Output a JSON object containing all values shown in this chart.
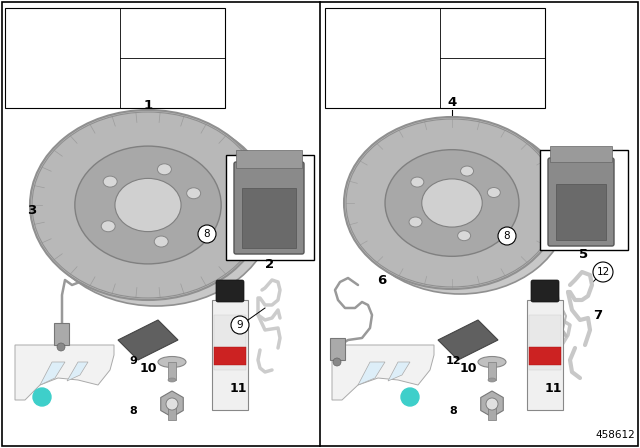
{
  "figure_number": "458612",
  "bg": "#ffffff",
  "border": "#000000",
  "teal": "#3ecfca",
  "light_gray": "#d8d8d8",
  "mid_gray": "#aaaaaa",
  "dark_gray": "#777777",
  "very_light": "#eeeeee",
  "ghost": "#d0d0d0"
}
